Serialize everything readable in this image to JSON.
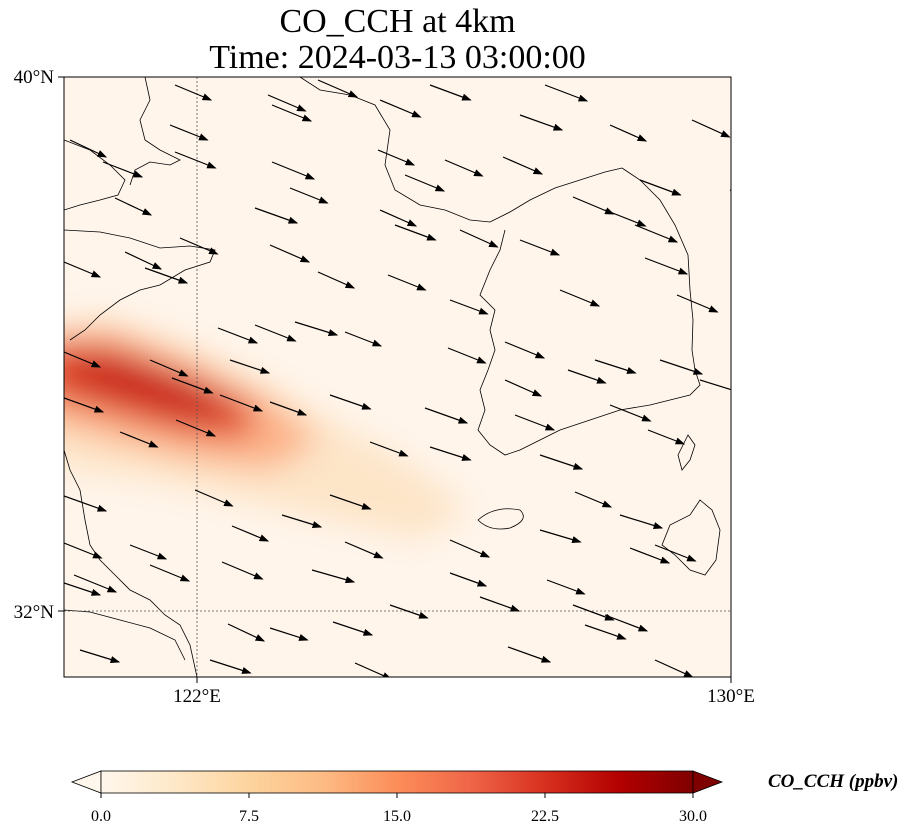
{
  "title": {
    "line1": "CO_CCH at 4km",
    "line2": "Time: 2024-03-13 03:00:00"
  },
  "axes": {
    "lat_ticks": [
      {
        "value": 40,
        "label": "40°N"
      },
      {
        "value": 32,
        "label": "32°N"
      }
    ],
    "lon_ticks": [
      {
        "value": 122,
        "label": "122°E"
      },
      {
        "value": 130,
        "label": "130°E"
      }
    ],
    "lon_range": [
      120,
      130
    ],
    "lat_range": [
      31,
      40
    ],
    "gridlines": "dotted, at 122°E and 32°N"
  },
  "colorbar": {
    "title": "CO_CCH (ppbv)",
    "colormap": "OrRd",
    "range": [
      0,
      30
    ],
    "extend": "both",
    "ticks": [
      {
        "value": 0,
        "label": "0.0"
      },
      {
        "value": 7.5,
        "label": "7.5"
      },
      {
        "value": 15,
        "label": "15.0"
      },
      {
        "value": 22.5,
        "label": "22.5"
      },
      {
        "value": 30,
        "label": "30.0"
      }
    ]
  },
  "plume": {
    "axis": [
      {
        "lon": 120.0,
        "lat": 35.2,
        "value": 18
      },
      {
        "lon": 121.2,
        "lat": 34.8,
        "value": 24
      },
      {
        "lon": 122.3,
        "lat": 34.3,
        "value": 20
      },
      {
        "lon": 123.6,
        "lat": 33.6,
        "value": 8
      },
      {
        "lon": 125.0,
        "lat": 32.9,
        "value": 3
      },
      {
        "lon": 126.5,
        "lat": 32.3,
        "value": 1
      }
    ]
  },
  "wind_vectors": {
    "color": "#000000",
    "description": "west-northwesterly flow across the domain"
  },
  "colors": {
    "frame": "#000000",
    "coast": "#000000",
    "background_field": "#fff5eb"
  }
}
